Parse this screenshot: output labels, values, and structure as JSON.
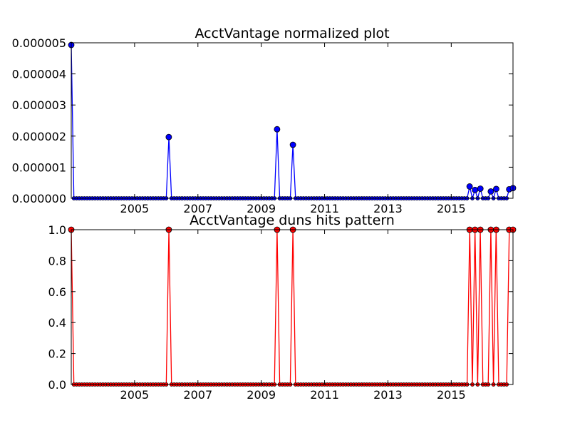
{
  "chart_data": [
    {
      "type": "line",
      "title": "AcctVantage normalized plot",
      "xlabel": "",
      "ylabel": "",
      "xlim": [
        2003.0,
        2016.95
      ],
      "ylim": [
        0,
        5e-06
      ],
      "yticks": [
        "0.000000",
        "0.000001",
        "0.000002",
        "0.000003",
        "0.000004",
        "0.000005"
      ],
      "ytick_values": [
        0,
        1e-06,
        2e-06,
        3e-06,
        4e-06,
        5e-06
      ],
      "xticks": [
        "2005",
        "2007",
        "2009",
        "2011",
        "2013",
        "2015"
      ],
      "xtick_values": [
        2005,
        2007,
        2009,
        2011,
        2013,
        2015
      ],
      "grid": false,
      "color": "#0000ff",
      "series": [
        {
          "x": [
            2003.0,
            2006.08,
            2009.5,
            2010.0,
            2015.58,
            2015.75,
            2015.92,
            2016.25,
            2016.42,
            2016.83,
            2016.95
          ],
          "values": [
            4.93e-06,
            1.97e-06,
            2.22e-06,
            1.72e-06,
            3.8e-07,
            2.7e-07,
            3.1e-07,
            2.2e-07,
            3e-07,
            2.9e-07,
            3.3e-07
          ]
        }
      ]
    },
    {
      "type": "line",
      "title": "AcctVantage duns hits pattern",
      "xlabel": "",
      "ylabel": "",
      "xlim": [
        2003.0,
        2016.95
      ],
      "ylim": [
        0,
        1.0
      ],
      "yticks": [
        "0.0",
        "0.2",
        "0.4",
        "0.6",
        "0.8",
        "1.0"
      ],
      "ytick_values": [
        0,
        0.2,
        0.4,
        0.6,
        0.8,
        1.0
      ],
      "xticks": [
        "2005",
        "2007",
        "2009",
        "2011",
        "2013",
        "2015"
      ],
      "xtick_values": [
        2005,
        2007,
        2009,
        2011,
        2013,
        2015
      ],
      "grid": false,
      "color": "#ff0000",
      "series": [
        {
          "x": [
            2003.0,
            2006.08,
            2009.5,
            2010.0,
            2015.58,
            2015.75,
            2015.92,
            2016.25,
            2016.42,
            2016.83,
            2016.95
          ],
          "values": [
            1,
            1,
            1,
            1,
            1,
            1,
            1,
            1,
            1,
            1,
            1
          ]
        }
      ]
    }
  ]
}
